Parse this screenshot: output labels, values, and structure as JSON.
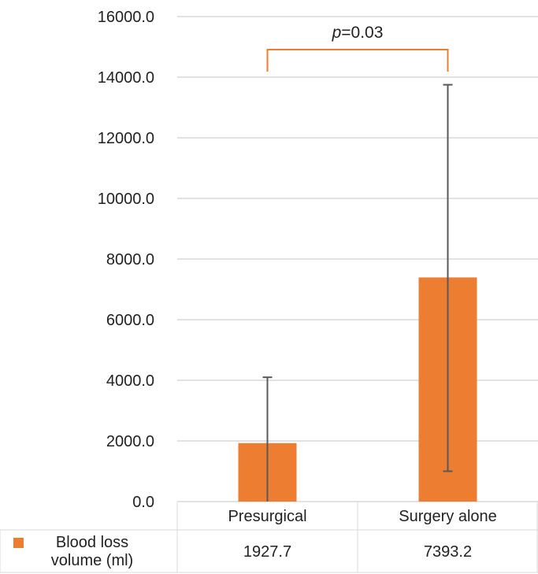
{
  "chart_data": {
    "type": "bar",
    "categories": [
      "Presurgical",
      "Surgery alone"
    ],
    "series": [
      {
        "name": "Blood loss volume (ml)",
        "name_lines": [
          "Blood loss",
          "volume (ml)"
        ],
        "values": [
          1927.7,
          7393.2
        ],
        "value_labels": [
          "1927.7",
          "7393.2"
        ],
        "error_low": [
          0,
          1000
        ],
        "error_high": [
          4100,
          13750
        ],
        "color": "#ED7D31"
      }
    ],
    "ylim": [
      0,
      16000
    ],
    "yticks": [
      0,
      2000,
      4000,
      6000,
      8000,
      10000,
      12000,
      14000,
      16000
    ],
    "ytick_labels": [
      "0.0",
      "2000.0",
      "4000.0",
      "6000.0",
      "8000.0",
      "10000.0",
      "12000.0",
      "14000.0",
      "16000.0"
    ],
    "grid": true,
    "legend": "data-table",
    "annotation": {
      "italic": "p",
      "rest": "=0.03",
      "color": "#ED7D31"
    },
    "colors": {
      "bar": "#ED7D31",
      "error_bar": "#595959",
      "grid": "#D9D9D9",
      "bracket": "#ED7D31"
    }
  }
}
